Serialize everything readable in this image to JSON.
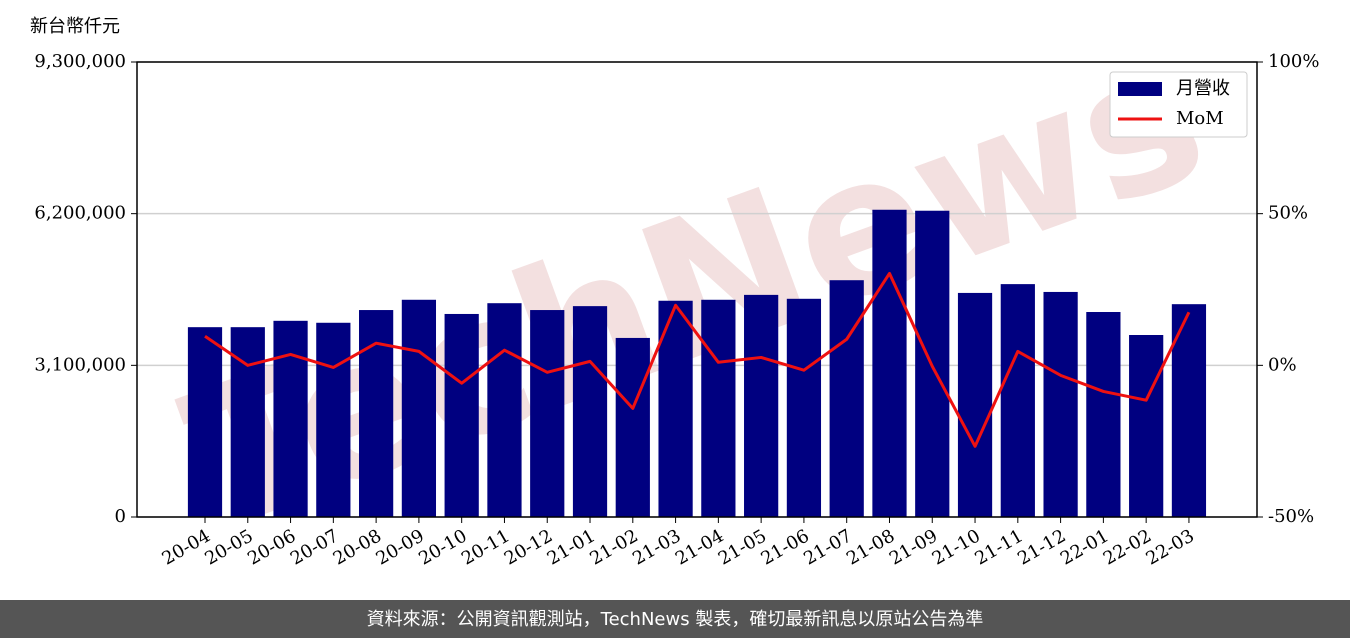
{
  "chart_data": {
    "type": "bar_line",
    "y_label": "新台幣仟元",
    "watermark": "TechNews",
    "footer": "資料來源：公開資訊觀測站，TechNews 製表，確切最新訊息以原站公告為準",
    "categories": [
      "20-04",
      "20-05",
      "20-06",
      "20-07",
      "20-08",
      "20-09",
      "20-10",
      "20-11",
      "20-12",
      "21-01",
      "21-02",
      "21-03",
      "21-04",
      "21-05",
      "21-06",
      "21-07",
      "21-08",
      "21-09",
      "21-10",
      "21-11",
      "21-12",
      "22-01",
      "22-02",
      "22-03"
    ],
    "series": [
      {
        "name": "月營收",
        "type": "bar",
        "color": "#000080",
        "values": [
          3880000,
          3880000,
          4010000,
          3970000,
          4230000,
          4440000,
          4150000,
          4370000,
          4230000,
          4310000,
          3660000,
          4420000,
          4440000,
          4540000,
          4460000,
          4840000,
          6280000,
          6260000,
          4580000,
          4760000,
          4600000,
          4190000,
          3720000,
          4350000
        ]
      },
      {
        "name": "MoM",
        "type": "line",
        "axis": "y2",
        "color": "#ee1111",
        "values": [
          9.6,
          0,
          3.6,
          -0.7,
          7.3,
          4.6,
          -5.9,
          5.0,
          -2.3,
          1.3,
          -14.2,
          19.8,
          1.0,
          2.6,
          -1.6,
          8.6,
          30.3,
          -0.3,
          -26.7,
          4.6,
          -3.3,
          -8.6,
          -11.5,
          17.5
        ]
      }
    ],
    "ylim": [
      0,
      9300000
    ],
    "yticks": [
      0,
      {
        "value": 3100000,
        "label": "3,100,000"
      },
      {
        "value": 6200000,
        "label": "6,200,000"
      },
      {
        "value": 9300000,
        "label": "9,300,000"
      }
    ],
    "y2lim": [
      -50,
      100
    ],
    "y2ticks": [
      {
        "value": -50,
        "label": "-50%"
      },
      {
        "value": 0,
        "label": "0%"
      },
      {
        "value": 50,
        "label": "50%"
      },
      {
        "value": 100,
        "label": "100%"
      }
    ],
    "grid": true,
    "legend": "upper right"
  }
}
